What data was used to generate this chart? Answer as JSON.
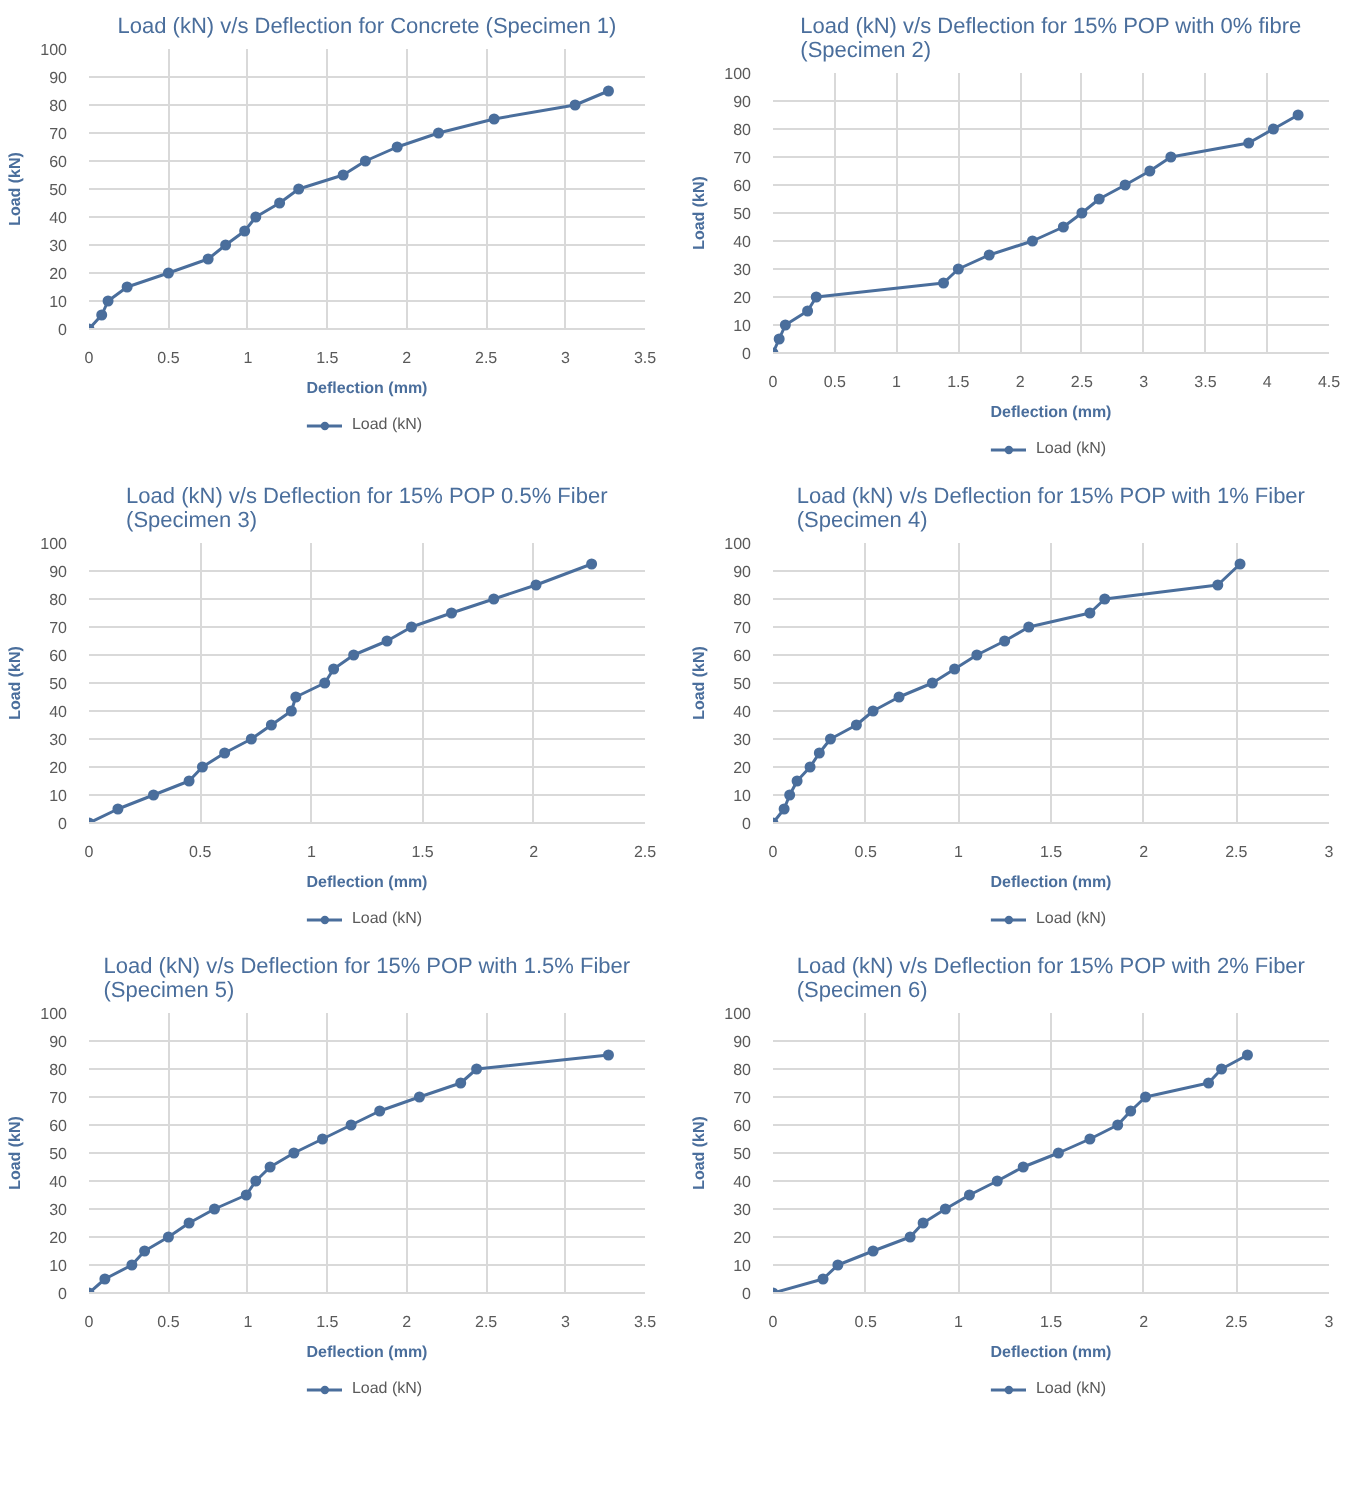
{
  "chart_data": [
    {
      "type": "line",
      "title": "Load (kN) v/s Deflection for Concrete (Specimen 1)",
      "xlabel": "Deflection (mm)",
      "ylabel": "Load (kN)",
      "marker": "circle",
      "grid": true,
      "legend": "bottom",
      "xlim": [
        0,
        3.5
      ],
      "xticks": [
        0,
        0.5,
        1,
        1.5,
        2,
        2.5,
        3,
        3.5
      ],
      "ylim": [
        0,
        100
      ],
      "yticks": [
        0,
        10,
        20,
        30,
        40,
        50,
        60,
        70,
        80,
        90,
        100
      ],
      "series": [
        {
          "name": "Load (kN)",
          "color": "#4a6e9c",
          "x": [
            0,
            0.08,
            0.12,
            0.24,
            0.5,
            0.75,
            0.86,
            0.98,
            1.05,
            1.2,
            1.32,
            1.6,
            1.74,
            1.94,
            2.2,
            2.55,
            3.06,
            3.27
          ],
          "values": [
            0,
            5,
            10,
            15,
            20,
            25,
            30,
            35,
            40,
            45,
            50,
            55,
            60,
            65,
            70,
            75,
            80,
            85
          ]
        }
      ]
    },
    {
      "type": "line",
      "title": "Load (kN) v/s Deflection for 15% POP with 0% fibre\n(Specimen 2)",
      "xlabel": "Deflection (mm)",
      "ylabel": "Load (kN)",
      "marker": "circle",
      "grid": true,
      "legend": "bottom",
      "xlim": [
        0,
        4.5
      ],
      "xticks": [
        0,
        0.5,
        1,
        1.5,
        2,
        2.5,
        3,
        3.5,
        4,
        4.5
      ],
      "ylim": [
        0,
        100
      ],
      "yticks": [
        0,
        10,
        20,
        30,
        40,
        50,
        60,
        70,
        80,
        90,
        100
      ],
      "series": [
        {
          "name": "Load (kN)",
          "color": "#4a6e9c",
          "x": [
            0,
            0.05,
            0.1,
            0.28,
            0.35,
            1.38,
            1.5,
            1.75,
            2.1,
            2.35,
            2.5,
            2.64,
            2.85,
            3.05,
            3.22,
            3.85,
            4.05,
            4.25
          ],
          "values": [
            0,
            5,
            10,
            15,
            20,
            25,
            30,
            35,
            40,
            45,
            50,
            55,
            60,
            65,
            70,
            75,
            80,
            85
          ]
        }
      ]
    },
    {
      "type": "line",
      "title": "Load (kN) v/s Deflection for 15% POP 0.5% Fiber\n(Specimen 3)",
      "xlabel": "Deflection (mm)",
      "ylabel": "Load (kN)",
      "marker": "circle",
      "grid": true,
      "legend": "bottom",
      "xlim": [
        0,
        2.5
      ],
      "xticks": [
        0,
        0.5,
        1,
        1.5,
        2,
        2.5
      ],
      "ylim": [
        0,
        100
      ],
      "yticks": [
        0,
        10,
        20,
        30,
        40,
        50,
        60,
        70,
        80,
        90,
        100
      ],
      "series": [
        {
          "name": "Load (kN)",
          "color": "#4a6e9c",
          "x": [
            0,
            0.13,
            0.29,
            0.45,
            0.51,
            0.61,
            0.73,
            0.82,
            0.91,
            0.93,
            1.06,
            1.1,
            1.19,
            1.34,
            1.45,
            1.63,
            1.82,
            2.01,
            2.26
          ],
          "values": [
            0,
            5,
            10,
            15,
            20,
            25,
            30,
            35,
            40,
            45,
            50,
            55,
            60,
            65,
            70,
            75,
            80,
            85,
            92.5
          ]
        }
      ]
    },
    {
      "type": "line",
      "title": "Load (kN) v/s Deflection for 15% POP with 1% Fiber\n(Specimen 4)",
      "xlabel": "Deflection (mm)",
      "ylabel": "Load (kN)",
      "marker": "circle",
      "grid": true,
      "legend": "bottom",
      "xlim": [
        0,
        3
      ],
      "xticks": [
        0,
        0.5,
        1,
        1.5,
        2,
        2.5,
        3
      ],
      "ylim": [
        0,
        100
      ],
      "yticks": [
        0,
        10,
        20,
        30,
        40,
        50,
        60,
        70,
        80,
        90,
        100
      ],
      "series": [
        {
          "name": "Load (kN)",
          "color": "#4a6e9c",
          "x": [
            0,
            0.06,
            0.09,
            0.13,
            0.2,
            0.25,
            0.31,
            0.45,
            0.54,
            0.68,
            0.86,
            0.98,
            1.1,
            1.25,
            1.38,
            1.71,
            1.79,
            2.4,
            2.52
          ],
          "values": [
            0,
            5,
            10,
            15,
            20,
            25,
            30,
            35,
            40,
            45,
            50,
            55,
            60,
            65,
            70,
            75,
            80,
            85,
            92.5
          ]
        }
      ]
    },
    {
      "type": "line",
      "title": "Load (kN) v/s Deflection for 15% POP with 1.5% Fiber\n(Specimen 5)",
      "xlabel": "Deflection (mm)",
      "ylabel": "Load (kN)",
      "marker": "circle",
      "grid": true,
      "legend": "bottom",
      "xlim": [
        0,
        3.5
      ],
      "xticks": [
        0,
        0.5,
        1,
        1.5,
        2,
        2.5,
        3,
        3.5
      ],
      "ylim": [
        0,
        100
      ],
      "yticks": [
        0,
        10,
        20,
        30,
        40,
        50,
        60,
        70,
        80,
        90,
        100
      ],
      "series": [
        {
          "name": "Load (kN)",
          "color": "#4a6e9c",
          "x": [
            0,
            0.1,
            0.27,
            0.35,
            0.5,
            0.63,
            0.79,
            0.99,
            1.05,
            1.14,
            1.29,
            1.47,
            1.65,
            1.83,
            2.08,
            2.34,
            2.44,
            3.27
          ],
          "values": [
            0,
            5,
            10,
            15,
            20,
            25,
            30,
            35,
            40,
            45,
            50,
            55,
            60,
            65,
            70,
            75,
            80,
            85
          ]
        }
      ]
    },
    {
      "type": "line",
      "title": "Load (kN) v/s Deflection for 15% POP with 2% Fiber\n(Specimen 6)",
      "xlabel": "Deflection (mm)",
      "ylabel": "Load (kN)",
      "marker": "circle",
      "grid": true,
      "legend": "bottom",
      "xlim": [
        0,
        3
      ],
      "xticks": [
        0,
        0.5,
        1,
        1.5,
        2,
        2.5,
        3
      ],
      "ylim": [
        0,
        100
      ],
      "yticks": [
        0,
        10,
        20,
        30,
        40,
        50,
        60,
        70,
        80,
        90,
        100
      ],
      "series": [
        {
          "name": "Load (kN)",
          "color": "#4a6e9c",
          "x": [
            0,
            0.27,
            0.35,
            0.54,
            0.74,
            0.81,
            0.93,
            1.06,
            1.21,
            1.35,
            1.54,
            1.71,
            1.86,
            1.93,
            2.01,
            2.35,
            2.42,
            2.56
          ],
          "values": [
            0,
            5,
            10,
            15,
            20,
            25,
            30,
            35,
            40,
            45,
            50,
            55,
            60,
            65,
            70,
            75,
            80,
            85
          ]
        }
      ]
    }
  ]
}
